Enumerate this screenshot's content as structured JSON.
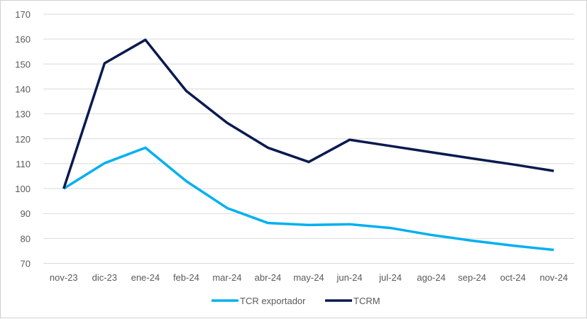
{
  "chart_data": {
    "type": "line",
    "title": "",
    "xlabel": "",
    "ylabel": "",
    "categories": [
      "nov-23",
      "dic-23",
      "ene-24",
      "feb-24",
      "mar-24",
      "abr-24",
      "may-24",
      "jun-24",
      "jul-24",
      "ago-24",
      "sep-24",
      "oct-24",
      "nov-24"
    ],
    "ylim": [
      70,
      170
    ],
    "yticks": [
      70,
      80,
      90,
      100,
      110,
      120,
      130,
      140,
      150,
      160,
      170
    ],
    "grid": true,
    "legend": "bottom",
    "series": [
      {
        "name": "TCR exportador",
        "color": "#00B0F0",
        "values": [
          100,
          110.2,
          116.4,
          103,
          92.2,
          86.2,
          85.4,
          85.7,
          84.2,
          81.4,
          79.1,
          77.1,
          75.4
        ]
      },
      {
        "name": "TCRM",
        "color": "#0A1A4F",
        "values": [
          100,
          150.3,
          159.7,
          139.2,
          126.4,
          116.4,
          110.7,
          119.6,
          117.1,
          114.6,
          112.1,
          109.7,
          107.1
        ]
      }
    ]
  }
}
